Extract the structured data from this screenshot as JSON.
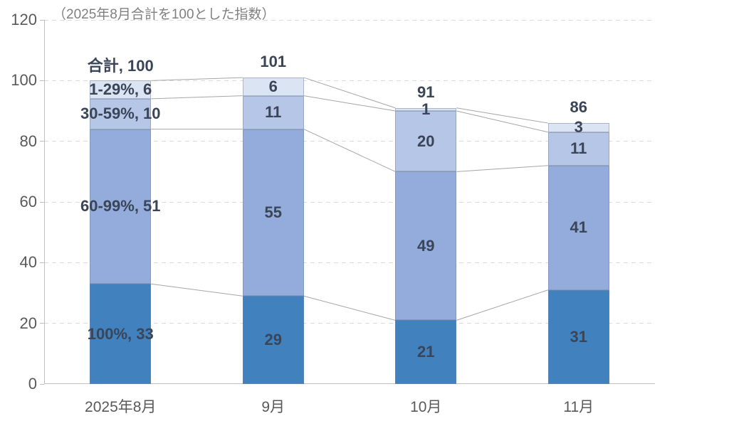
{
  "title": "（2025年8月合計を100とした指数）",
  "chart_data": {
    "type": "bar",
    "stacked": true,
    "title": "（2025年8月合計を100とした指数）",
    "categories": [
      "2025年8月",
      "9月",
      "10月",
      "11月"
    ],
    "series": [
      {
        "name": "100%",
        "values": [
          33,
          29,
          21,
          31
        ],
        "color": "#4181BE"
      },
      {
        "name": "60-99%",
        "values": [
          51,
          55,
          49,
          41
        ],
        "color": "#93ACDB"
      },
      {
        "name": "30-59%",
        "values": [
          10,
          11,
          20,
          11
        ],
        "color": "#B6C6E7"
      },
      {
        "name": "1-29%",
        "values": [
          6,
          6,
          1,
          3
        ],
        "color": "#DBE4F2"
      }
    ],
    "totals": [
      100,
      101,
      91,
      86
    ],
    "total_labels": [
      "合計, 100",
      "101",
      "91",
      "86"
    ],
    "segment_labels": [
      [
        "100%, 33",
        "60-99%, 51",
        "30-59%, 10",
        "1-29%, 6"
      ],
      [
        "29",
        "55",
        "11",
        "6"
      ],
      [
        "21",
        "49",
        "20",
        "1"
      ],
      [
        "31",
        "41",
        "11",
        "3"
      ]
    ],
    "xlabel": "",
    "ylabel": "",
    "ylim": [
      0,
      120
    ],
    "yticks": [
      0,
      20,
      40,
      60,
      80,
      100,
      120
    ],
    "grid": "horizontal-dashed",
    "legend": "none",
    "connector_lines": true
  },
  "colors": {
    "background": "#FFFFFF",
    "axis": "#BFBFBF",
    "gridline": "#DBDBDB",
    "connector": "#A6A6A6",
    "tick_label": "#595959",
    "data_label": "#3A4557",
    "title": "#808080"
  }
}
